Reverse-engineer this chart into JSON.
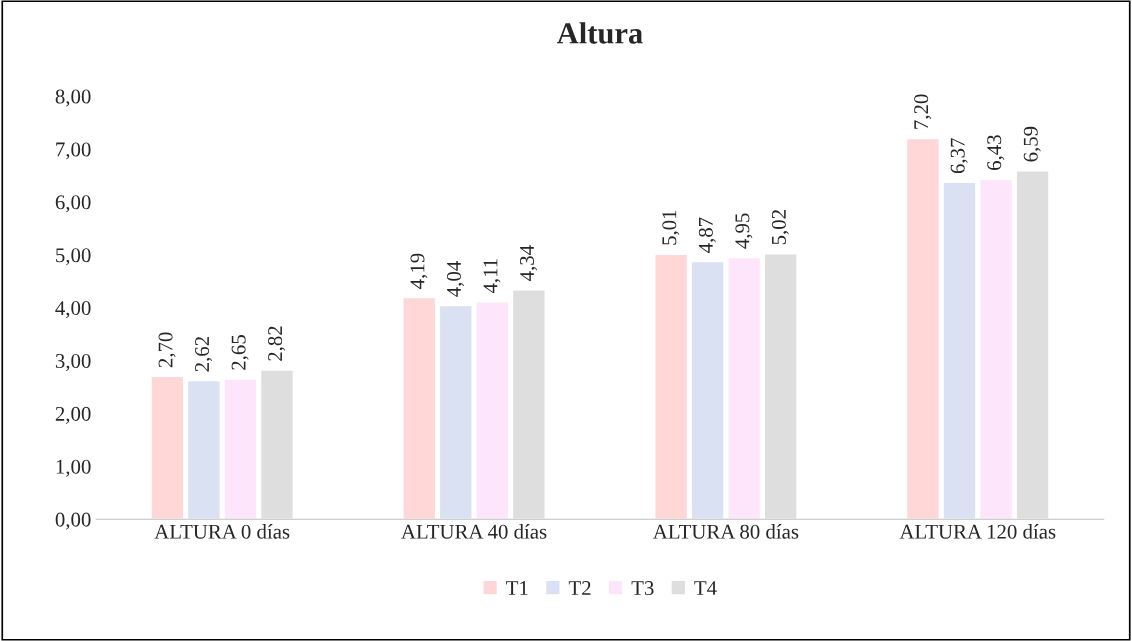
{
  "chart_data": {
    "type": "bar",
    "title": "Altura",
    "categories": [
      "ALTURA 0 días",
      "ALTURA 40 días",
      "ALTURA 80 días",
      "ALTURA 120 días"
    ],
    "series": [
      {
        "name": "T1",
        "color": "#ffd7d7",
        "values": [
          2.7,
          4.19,
          5.01,
          7.2
        ],
        "value_labels": [
          "2,70",
          "4,19",
          "5,01",
          "7,20"
        ]
      },
      {
        "name": "T2",
        "color": "#d9e1f2",
        "values": [
          2.62,
          4.04,
          4.87,
          6.37
        ],
        "value_labels": [
          "2,62",
          "4,04",
          "4,87",
          "6,37"
        ]
      },
      {
        "name": "T3",
        "color": "#fde6fb",
        "values": [
          2.65,
          4.11,
          4.95,
          6.43
        ],
        "value_labels": [
          "2,65",
          "4,11",
          "4,95",
          "6,43"
        ]
      },
      {
        "name": "T4",
        "color": "#dedede",
        "values": [
          2.82,
          4.34,
          5.02,
          6.59
        ],
        "value_labels": [
          "2,82",
          "4,34",
          "5,02",
          "6,59"
        ]
      }
    ],
    "ylim": [
      0,
      8
    ],
    "yticks": [
      {
        "value": 0,
        "label": "0,00"
      },
      {
        "value": 1,
        "label": "1,00"
      },
      {
        "value": 2,
        "label": "2,00"
      },
      {
        "value": 3,
        "label": "3,00"
      },
      {
        "value": 4,
        "label": "4,00"
      },
      {
        "value": 5,
        "label": "5,00"
      },
      {
        "value": 6,
        "label": "6,00"
      },
      {
        "value": 7,
        "label": "7,00"
      },
      {
        "value": 8,
        "label": "8,00"
      }
    ],
    "grid": false,
    "legend": "bottom"
  }
}
